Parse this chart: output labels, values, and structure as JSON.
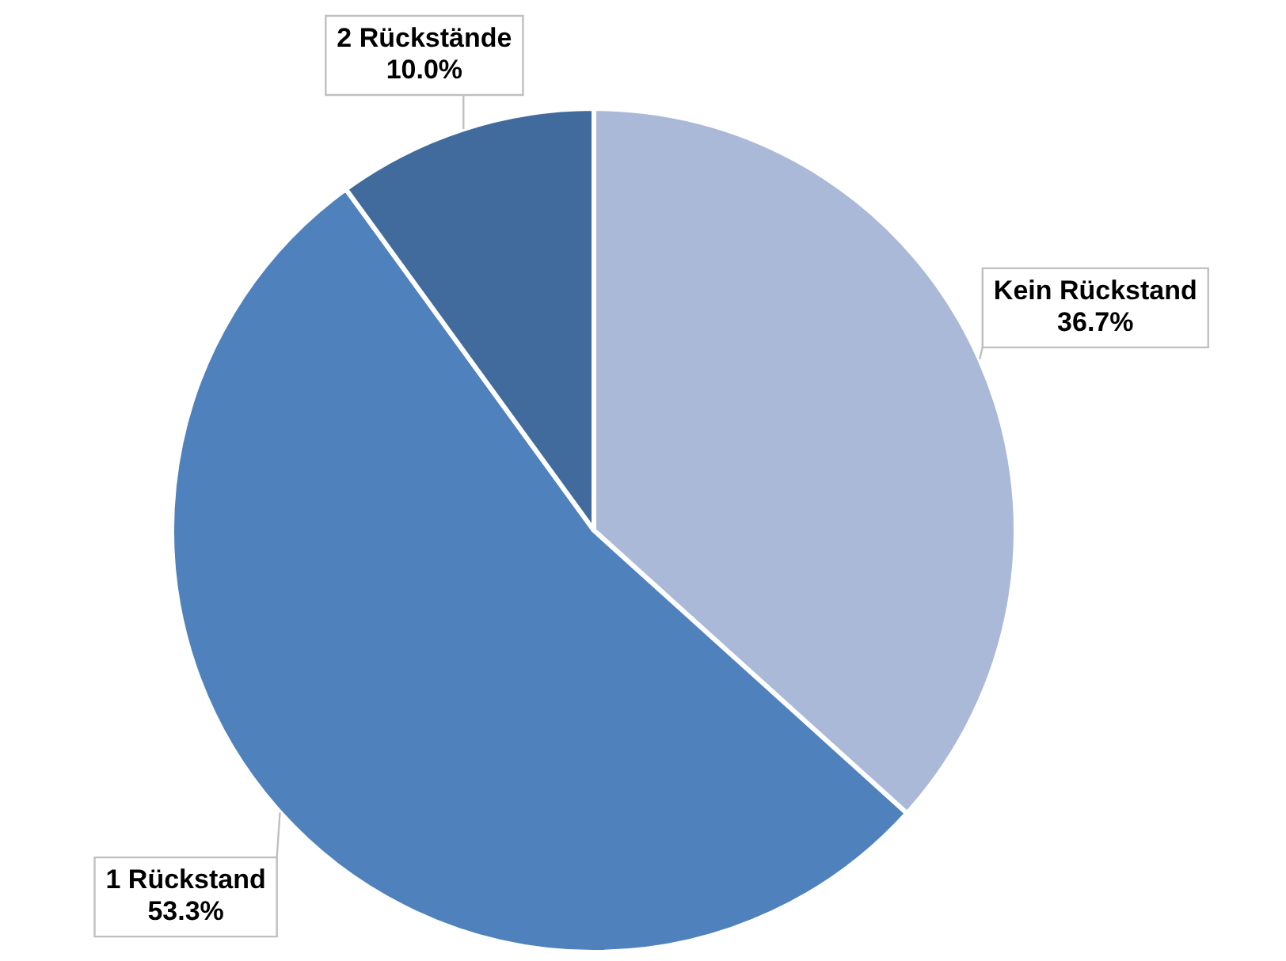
{
  "chart_data": {
    "type": "pie",
    "categories": [
      "Kein Rückstand",
      "1 Rückstand",
      "2 Rückstände"
    ],
    "values": [
      36.7,
      53.3,
      10.0
    ],
    "value_labels": [
      "36.7%",
      "53.3%",
      "10.0%"
    ],
    "colors": [
      "#aab9d7",
      "#4f81bd",
      "#416b9c"
    ],
    "legend": false
  }
}
